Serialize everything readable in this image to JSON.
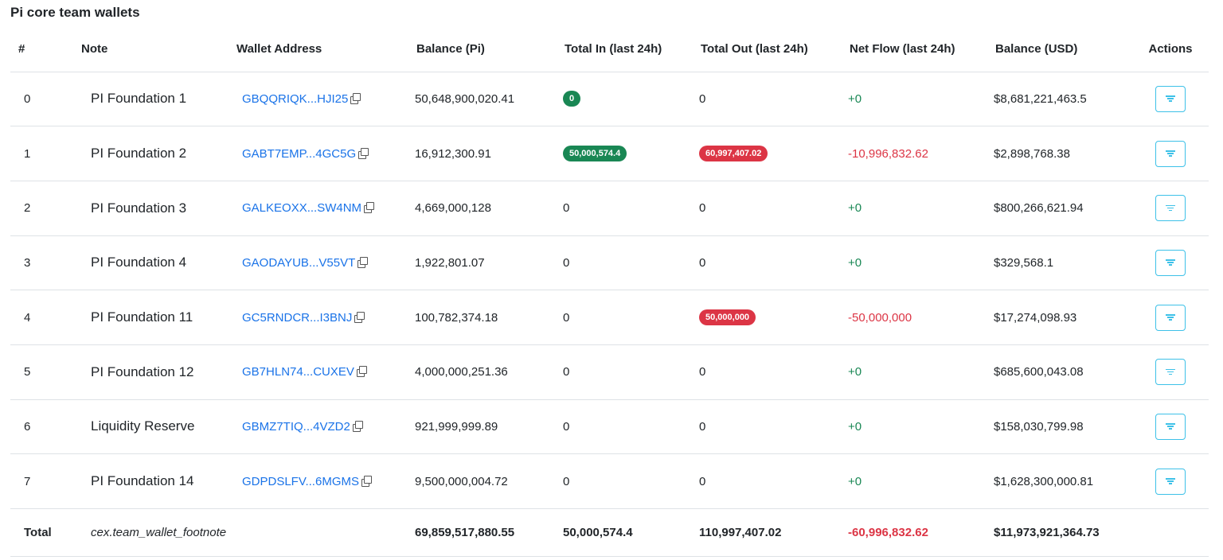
{
  "title": "Pi core team wallets",
  "columns": [
    "#",
    "Note",
    "Wallet Address",
    "Balance (Pi)",
    "Total In (last 24h)",
    "Total Out (last 24h)",
    "Net Flow (last 24h)",
    "Balance (USD)",
    "Actions"
  ],
  "rows": [
    {
      "idx": "0",
      "note": "PI Foundation 1",
      "address": "GBQQRIQK...HJI25",
      "balance": "50,648,900,020.41",
      "total_in": "0",
      "in_badge": true,
      "total_out": "0",
      "out_badge": false,
      "net": "+0",
      "net_sign": "pos",
      "usd": "$8,681,221,463.5"
    },
    {
      "idx": "1",
      "note": "PI Foundation 2",
      "address": "GABT7EMP...4GC5G",
      "balance": "16,912,300.91",
      "total_in": "50,000,574.4",
      "in_badge": true,
      "total_out": "60,997,407.02",
      "out_badge": true,
      "net": "-10,996,832.62",
      "net_sign": "neg",
      "usd": "$2,898,768.38"
    },
    {
      "idx": "2",
      "note": "PI Foundation 3",
      "address": "GALKEOXX...SW4NM",
      "balance": "4,669,000,128",
      "total_in": "0",
      "in_badge": false,
      "total_out": "0",
      "out_badge": false,
      "net": "+0",
      "net_sign": "pos",
      "usd": "$800,266,621.94"
    },
    {
      "idx": "3",
      "note": "PI Foundation 4",
      "address": "GAODAYUB...V55VT",
      "balance": "1,922,801.07",
      "total_in": "0",
      "in_badge": false,
      "total_out": "0",
      "out_badge": false,
      "net": "+0",
      "net_sign": "pos",
      "usd": "$329,568.1"
    },
    {
      "idx": "4",
      "note": "PI Foundation 11",
      "address": "GC5RNDCR...I3BNJ",
      "balance": "100,782,374.18",
      "total_in": "0",
      "in_badge": false,
      "total_out": "50,000,000",
      "out_badge": true,
      "net": "-50,000,000",
      "net_sign": "neg",
      "usd": "$17,274,098.93"
    },
    {
      "idx": "5",
      "note": "PI Foundation 12",
      "address": "GB7HLN74...CUXEV",
      "balance": "4,000,000,251.36",
      "total_in": "0",
      "in_badge": false,
      "total_out": "0",
      "out_badge": false,
      "net": "+0",
      "net_sign": "pos",
      "usd": "$685,600,043.08"
    },
    {
      "idx": "6",
      "note": "Liquidity Reserve",
      "address": "GBMZ7TIQ...4VZD2",
      "balance": "921,999,999.89",
      "total_in": "0",
      "in_badge": false,
      "total_out": "0",
      "out_badge": false,
      "net": "+0",
      "net_sign": "pos",
      "usd": "$158,030,799.98"
    },
    {
      "idx": "7",
      "note": "PI Foundation 14",
      "address": "GDPDSLFV...6MGMS",
      "balance": "9,500,000,004.72",
      "total_in": "0",
      "in_badge": false,
      "total_out": "0",
      "out_badge": false,
      "net": "+0",
      "net_sign": "pos",
      "usd": "$1,628,300,000.81"
    }
  ],
  "total": {
    "label": "Total",
    "note": "cex.team_wallet_footnote",
    "balance": "69,859,517,880.55",
    "total_in": "50,000,574.4",
    "total_out": "110,997,407.02",
    "net": "-60,996,832.62",
    "usd": "$11,973,921,364.73"
  },
  "icons": {
    "copy": "copy-icon",
    "filter": "filter-icon"
  },
  "colors": {
    "link": "#1a73e8",
    "positive": "#198754",
    "negative": "#dc3545",
    "action_border": "#3dc1e8"
  }
}
